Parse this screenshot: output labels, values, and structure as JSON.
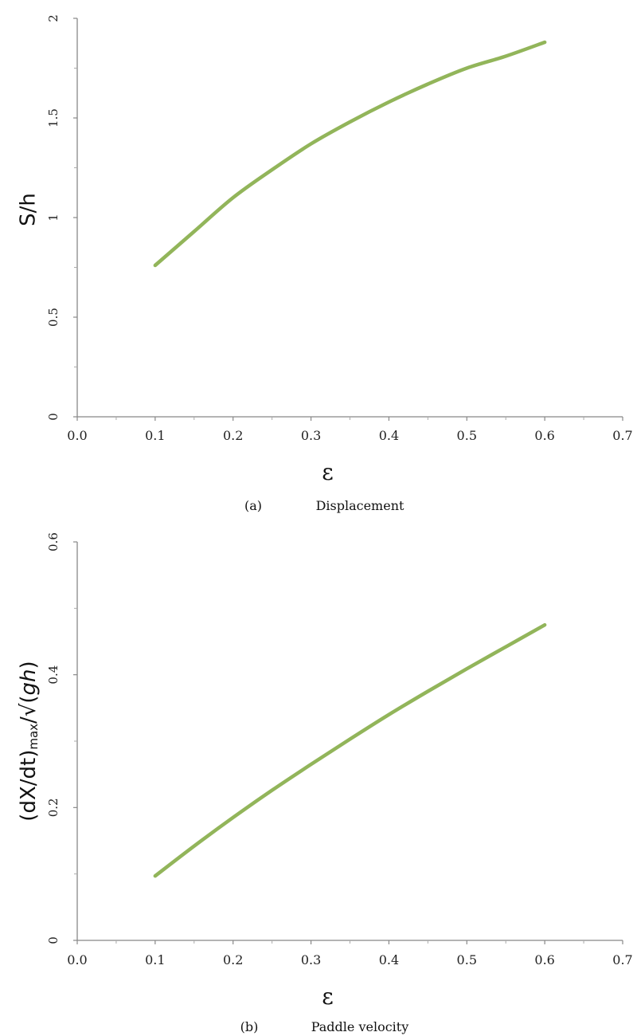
{
  "chart_data": [
    {
      "type": "line",
      "caption_label": "(a)",
      "caption_text": "Displacement",
      "xlabel": "ε",
      "ylabel": "S/h",
      "xlim": [
        0.0,
        0.7
      ],
      "ylim": [
        0,
        2
      ],
      "xticks": [
        0.0,
        0.1,
        0.2,
        0.3,
        0.4,
        0.5,
        0.6,
        0.7
      ],
      "xtick_labels": [
        "0.0",
        "0.1",
        "0.2",
        "0.3",
        "0.4",
        "0.5",
        "0.6",
        "0.7"
      ],
      "yticks": [
        0,
        0.5,
        1,
        1.5,
        2
      ],
      "ytick_labels": [
        "0",
        "0.5",
        "1",
        "1.5",
        "2"
      ],
      "grid": false,
      "line_color": "#92b55a",
      "series": [
        {
          "x": [
            0.1,
            0.15,
            0.2,
            0.25,
            0.3,
            0.35,
            0.4,
            0.45,
            0.5,
            0.55,
            0.6
          ],
          "y": [
            0.76,
            0.93,
            1.1,
            1.24,
            1.37,
            1.48,
            1.58,
            1.67,
            1.75,
            1.81,
            1.88
          ]
        }
      ]
    },
    {
      "type": "line",
      "caption_label": "(b)",
      "caption_text": "Paddle velocity",
      "xlabel": "ε",
      "ylabel": "(dX/dt)max/√(gh)",
      "ylabel_parts": {
        "base": "(dX/dt)",
        "sub": "max",
        "rest": "/√(",
        "italic": "gh",
        "close": ")"
      },
      "xlim": [
        0.0,
        0.7
      ],
      "ylim": [
        0,
        0.6
      ],
      "xticks": [
        0.0,
        0.1,
        0.2,
        0.3,
        0.4,
        0.5,
        0.6,
        0.7
      ],
      "xtick_labels": [
        "0.0",
        "0.1",
        "0.2",
        "0.3",
        "0.4",
        "0.5",
        "0.6",
        "0.7"
      ],
      "yticks": [
        0,
        0.2,
        0.4,
        0.6
      ],
      "ytick_labels": [
        "0",
        "0.2",
        "0.4",
        "0.6"
      ],
      "grid": false,
      "line_color": "#92b55a",
      "series": [
        {
          "x": [
            0.1,
            0.15,
            0.2,
            0.25,
            0.3,
            0.35,
            0.4,
            0.45,
            0.5,
            0.55,
            0.6
          ],
          "y": [
            0.097,
            0.142,
            0.185,
            0.226,
            0.265,
            0.303,
            0.34,
            0.375,
            0.409,
            0.442,
            0.475
          ]
        }
      ]
    }
  ]
}
